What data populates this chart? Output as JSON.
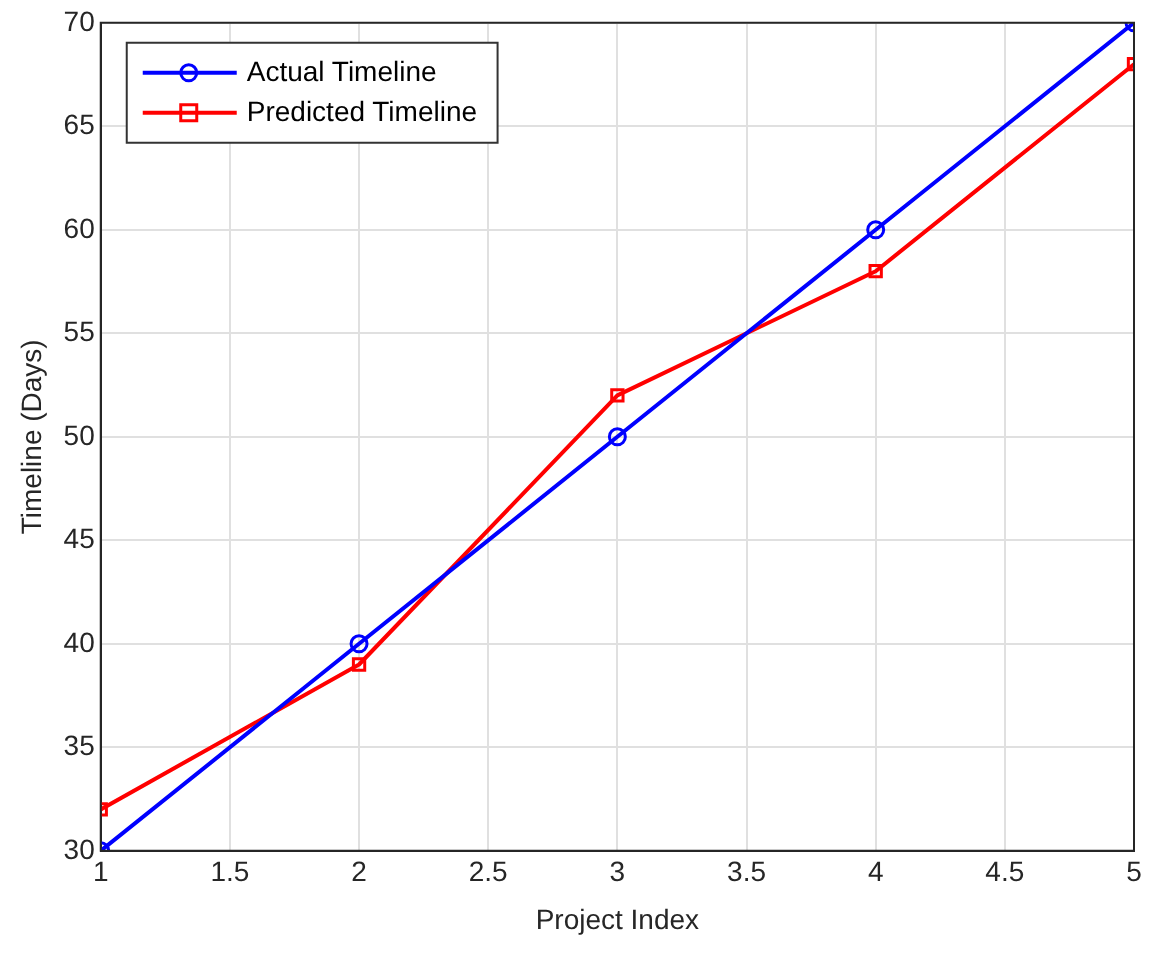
{
  "chart_data": {
    "type": "line",
    "xlabel": "Project Index",
    "ylabel": "Timeline (Days)",
    "x": [
      1,
      2,
      3,
      4,
      5
    ],
    "series": [
      {
        "name": "Actual Timeline",
        "color": "#0000ff",
        "marker": "circle",
        "values": [
          30,
          40,
          50,
          60,
          70
        ]
      },
      {
        "name": "Predicted Timeline",
        "color": "#ff0000",
        "marker": "square",
        "values": [
          32,
          39,
          52,
          58,
          68
        ]
      }
    ],
    "xlim": [
      1,
      5
    ],
    "xticks": [
      1,
      1.5,
      2,
      2.5,
      3,
      3.5,
      4,
      4.5,
      5
    ],
    "ylim": [
      30,
      70
    ],
    "yticks": [
      30,
      35,
      40,
      45,
      50,
      55,
      60,
      65,
      70
    ],
    "grid": true,
    "legend": "top left",
    "line_style": "solid"
  }
}
